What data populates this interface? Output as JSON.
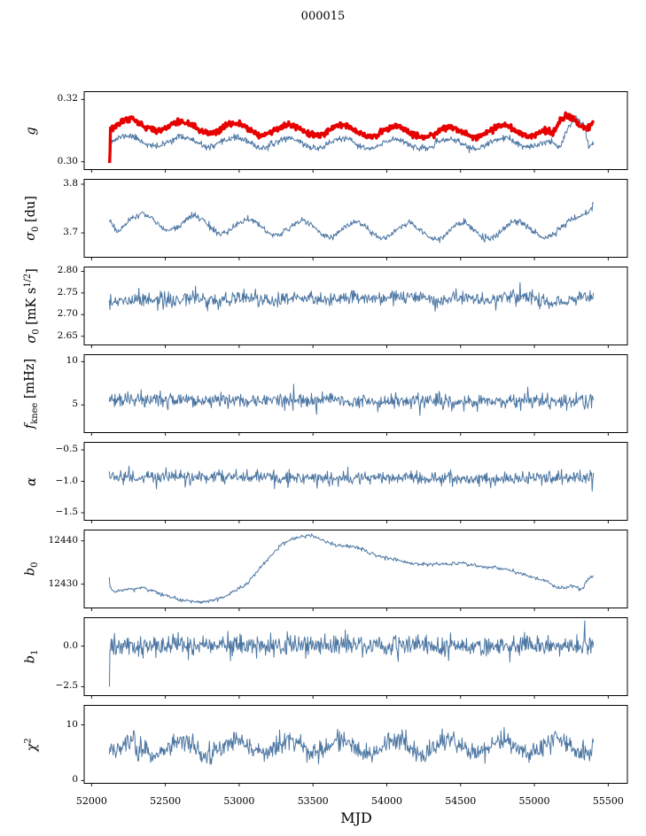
{
  "chart_data": {
    "type": "line",
    "title": "000015",
    "xlabel": "MJD",
    "xlim": [
      51950,
      55630
    ],
    "xticks": [
      {
        "v": 52000,
        "label": "52000"
      },
      {
        "v": 52500,
        "label": "52500"
      },
      {
        "v": 53000,
        "label": "53000"
      },
      {
        "v": 53500,
        "label": "53500"
      },
      {
        "v": 54000,
        "label": "54000"
      },
      {
        "v": 54500,
        "label": "54500"
      },
      {
        "v": 55000,
        "label": "55000"
      },
      {
        "v": 55500,
        "label": "55500"
      }
    ],
    "colors": {
      "line": "#4d77a3",
      "highlight": "#e60000",
      "axis": "#000000"
    },
    "panels": [
      {
        "name": "g",
        "label": [
          {
            "i": "g"
          }
        ],
        "ylim": [
          0.2975,
          0.3225
        ],
        "yticks": [
          {
            "v": 0.3,
            "label": "0.30"
          },
          {
            "v": 0.32,
            "label": "0.32"
          }
        ],
        "series": [
          {
            "name": "g-fit",
            "color": "#4d77a3",
            "width": 1.0,
            "seed": 11,
            "n": 800,
            "x0": 52120,
            "x1": 55400,
            "keypoints": [
              [
                52120,
                0.3072
              ],
              [
                52300,
                0.3066
              ],
              [
                52800,
                0.3063
              ],
              [
                53400,
                0.306
              ],
              [
                54000,
                0.3057
              ],
              [
                54500,
                0.3057
              ],
              [
                54900,
                0.3061
              ],
              [
                55060,
                0.3063
              ],
              [
                55120,
                0.3048
              ],
              [
                55170,
                0.3032
              ],
              [
                55230,
                0.311
              ],
              [
                55280,
                0.3155
              ],
              [
                55330,
                0.314
              ],
              [
                55370,
                0.3062
              ],
              [
                55400,
                0.3068
              ]
            ],
            "osc": {
              "amp": 0.0016,
              "period": 362,
              "phase": 52160
            },
            "noise": 0.0005,
            "force": [
              [
                52121,
                0.2999
              ],
              [
                52124,
                0.3025
              ]
            ]
          },
          {
            "name": "g-smooth",
            "color": "#e60000",
            "width": 3.4,
            "seed": 12,
            "n": 800,
            "x0": 52120,
            "x1": 55400,
            "keypoints": [
              [
                52120,
                0.3108
              ],
              [
                52260,
                0.3122
              ],
              [
                52600,
                0.3112
              ],
              [
                53200,
                0.3103
              ],
              [
                53800,
                0.3099
              ],
              [
                54400,
                0.3094
              ],
              [
                54900,
                0.31
              ],
              [
                55060,
                0.31
              ],
              [
                55130,
                0.3075
              ],
              [
                55200,
                0.3135
              ],
              [
                55260,
                0.315
              ],
              [
                55310,
                0.3128
              ],
              [
                55360,
                0.3122
              ],
              [
                55400,
                0.3132
              ]
            ],
            "osc": {
              "amp": 0.0017,
              "period": 362,
              "phase": 52160
            },
            "noise": 0.00045,
            "force": [
              [
                52122,
                0.2996
              ],
              [
                52125,
                0.303
              ]
            ]
          }
        ]
      },
      {
        "name": "sigma0-du",
        "label": [
          {
            "i": "σ"
          },
          {
            "sub": "0"
          },
          {
            "t": " [du]"
          }
        ],
        "ylim": [
          3.65,
          3.81
        ],
        "yticks": [
          {
            "v": 3.7,
            "label": "3.7"
          },
          {
            "v": 3.8,
            "label": "3.8"
          }
        ],
        "series": [
          {
            "name": "sigma0-du",
            "color": "#4d77a3",
            "width": 1.0,
            "seed": 21,
            "n": 700,
            "x0": 52120,
            "x1": 55400,
            "keypoints": [
              [
                52120,
                3.742
              ],
              [
                52170,
                3.72
              ],
              [
                52400,
                3.724
              ],
              [
                52900,
                3.714
              ],
              [
                53600,
                3.708
              ],
              [
                54300,
                3.702
              ],
              [
                54800,
                3.706
              ],
              [
                55000,
                3.712
              ],
              [
                55120,
                3.702
              ],
              [
                55220,
                3.704
              ],
              [
                55300,
                3.725
              ],
              [
                55360,
                3.752
              ],
              [
                55400,
                3.772
              ]
            ],
            "osc": {
              "amp": 0.016,
              "period": 362,
              "phase": 52250
            },
            "noise": 0.0035
          }
        ]
      },
      {
        "name": "sigma0-mk",
        "label": [
          {
            "i": "σ"
          },
          {
            "sub": "0"
          },
          {
            "t": " [mK s"
          },
          {
            "sup": "1/2"
          },
          {
            "t": "]"
          }
        ],
        "ylim": [
          2.63,
          2.81
        ],
        "yticks": [
          {
            "v": 2.65,
            "label": "2.65"
          },
          {
            "v": 2.7,
            "label": "2.70"
          },
          {
            "v": 2.75,
            "label": "2.75"
          },
          {
            "v": 2.8,
            "label": "2.80"
          }
        ],
        "series": [
          {
            "name": "sigma0-mk",
            "color": "#4d77a3",
            "width": 1.0,
            "seed": 31,
            "n": 720,
            "x0": 52120,
            "x1": 55400,
            "keypoints": [
              [
                52120,
                2.732
              ],
              [
                52600,
                2.736
              ],
              [
                53200,
                2.737
              ],
              [
                54000,
                2.739
              ],
              [
                54600,
                2.737
              ],
              [
                55000,
                2.739
              ],
              [
                55120,
                2.73
              ],
              [
                55200,
                2.722
              ],
              [
                55280,
                2.733
              ],
              [
                55340,
                2.746
              ],
              [
                55400,
                2.741
              ]
            ],
            "osc": {
              "amp": 0.003,
              "period": 362,
              "phase": 52250
            },
            "noise": 0.0085,
            "spikes": {
              "prob": 0.01,
              "amp": 0.018
            }
          }
        ]
      },
      {
        "name": "fknee",
        "label": [
          {
            "i": "f"
          },
          {
            "sub": "knee"
          },
          {
            "t": " [mHz]"
          }
        ],
        "ylim": [
          1.8,
          10.8
        ],
        "yticks": [
          {
            "v": 5,
            "label": "5"
          },
          {
            "v": 10,
            "label": "10"
          }
        ],
        "series": [
          {
            "name": "fknee",
            "color": "#4d77a3",
            "width": 1.0,
            "seed": 41,
            "n": 760,
            "x0": 52120,
            "x1": 55400,
            "keypoints": [
              [
                52120,
                5.6
              ],
              [
                52800,
                5.5
              ],
              [
                53600,
                5.55
              ],
              [
                54400,
                5.45
              ],
              [
                55000,
                5.4
              ],
              [
                55400,
                5.5
              ]
            ],
            "noise": 0.42,
            "spikes": {
              "prob": 0.03,
              "amp": 1.3
            }
          }
        ]
      },
      {
        "name": "alpha",
        "label": [
          {
            "i": "α"
          }
        ],
        "ylim": [
          -1.62,
          -0.38
        ],
        "yticks": [
          {
            "v": -1.5,
            "label": "−1.5"
          },
          {
            "v": -1.0,
            "label": "−1.0"
          },
          {
            "v": -0.5,
            "label": "−0.5"
          }
        ],
        "series": [
          {
            "name": "alpha",
            "color": "#4d77a3",
            "width": 1.0,
            "seed": 51,
            "n": 760,
            "x0": 52120,
            "x1": 55400,
            "keypoints": [
              [
                52120,
                -0.93
              ],
              [
                53000,
                -0.94
              ],
              [
                54000,
                -0.95
              ],
              [
                55400,
                -0.95
              ]
            ],
            "noise": 0.05,
            "spikes": {
              "prob": 0.015,
              "amp": 0.13
            }
          }
        ]
      },
      {
        "name": "b0",
        "label": [
          {
            "i": "b"
          },
          {
            "sub": "0"
          }
        ],
        "ylim": [
          12424.5,
          12442.5
        ],
        "yticks": [
          {
            "v": 12430,
            "label": "12430"
          },
          {
            "v": 12440,
            "label": "12440"
          }
        ],
        "series": [
          {
            "name": "b0",
            "color": "#4d77a3",
            "width": 1.0,
            "seed": 61,
            "n": 640,
            "x0": 52120,
            "x1": 55400,
            "keypoints": [
              [
                52120,
                12429.5
              ],
              [
                52160,
                12428.2
              ],
              [
                52250,
                12428.8
              ],
              [
                52350,
                12429.2
              ],
              [
                52450,
                12428.0
              ],
              [
                52600,
                12426.3
              ],
              [
                52750,
                12425.9
              ],
              [
                52900,
                12427.0
              ],
              [
                53050,
                12430.0
              ],
              [
                53200,
                12436.0
              ],
              [
                53300,
                12439.5
              ],
              [
                53400,
                12440.8
              ],
              [
                53480,
                12441.2
              ],
              [
                53560,
                12440.2
              ],
              [
                53650,
                12439.0
              ],
              [
                53800,
                12438.5
              ],
              [
                53900,
                12437.0
              ],
              [
                54000,
                12436.0
              ],
              [
                54150,
                12435.0
              ],
              [
                54300,
                12434.5
              ],
              [
                54500,
                12434.8
              ],
              [
                54650,
                12434.0
              ],
              [
                54800,
                12433.5
              ],
              [
                54950,
                12432.0
              ],
              [
                55100,
                12430.5
              ],
              [
                55150,
                12429.0
              ],
              [
                55250,
                12429.5
              ],
              [
                55320,
                12428.8
              ],
              [
                55370,
                12431.5
              ],
              [
                55400,
                12431.8
              ]
            ],
            "noise": 0.22,
            "force": [
              [
                52120,
                12431.6
              ]
            ]
          }
        ]
      },
      {
        "name": "b1",
        "label": [
          {
            "i": "b"
          },
          {
            "sub": "1"
          }
        ],
        "ylim": [
          -3.05,
          1.75
        ],
        "yticks": [
          {
            "v": -2.5,
            "label": "−2.5"
          },
          {
            "v": 0.0,
            "label": "0.0"
          }
        ],
        "series": [
          {
            "name": "b1",
            "color": "#4d77a3",
            "width": 1.0,
            "seed": 71,
            "n": 760,
            "x0": 52120,
            "x1": 55400,
            "keypoints": [
              [
                52120,
                0.05
              ],
              [
                53500,
                0.03
              ],
              [
                55400,
                0.0
              ]
            ],
            "noise": 0.32,
            "spikes": {
              "prob": 0.012,
              "amp": 0.8
            },
            "force": [
              [
                52121,
                -2.5
              ],
              [
                55341,
                1.55
              ]
            ]
          }
        ]
      },
      {
        "name": "chi2",
        "label": [
          {
            "i": "χ"
          },
          {
            "sup": "2"
          }
        ],
        "ylim": [
          -0.5,
          13.5
        ],
        "yticks": [
          {
            "v": 0,
            "label": "0"
          },
          {
            "v": 10,
            "label": "10"
          }
        ],
        "series": [
          {
            "name": "chi2",
            "color": "#4d77a3",
            "width": 1.0,
            "seed": 81,
            "n": 760,
            "x0": 52120,
            "x1": 55400,
            "keypoints": [
              [
                52120,
                5.7
              ],
              [
                53000,
                6.0
              ],
              [
                54200,
                6.0
              ],
              [
                55400,
                6.3
              ]
            ],
            "osc": {
              "amp": 1.25,
              "period": 362,
              "phase": 52160
            },
            "noise": 0.9,
            "spikes": {
              "prob": 0.012,
              "amp": 1.6
            }
          }
        ]
      }
    ]
  }
}
